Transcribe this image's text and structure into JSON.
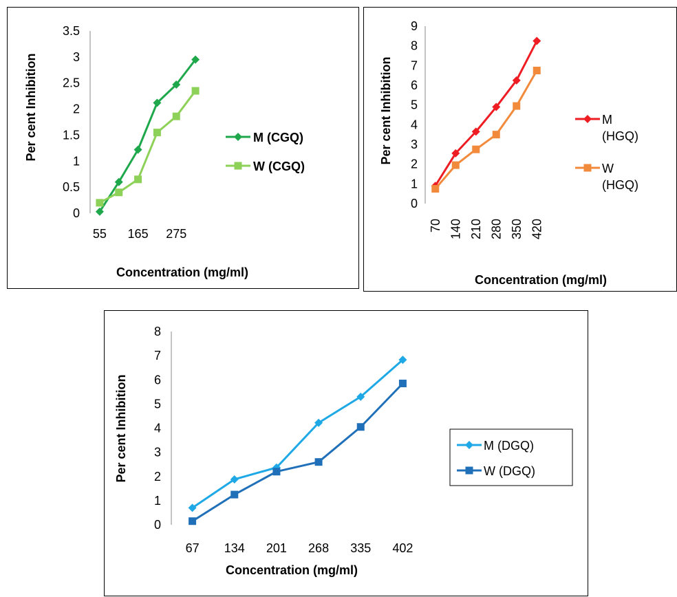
{
  "chart_data": [
    {
      "type": "line",
      "xlabel": "Concentration (mg/ml)",
      "ylabel": "Per cent Inhibition",
      "x": [
        55,
        110,
        165,
        220,
        275,
        330
      ],
      "x_tick_labels": [
        "55",
        "165",
        "275"
      ],
      "ylim": [
        0,
        3.5
      ],
      "y_ticks": [
        "0",
        "0.5",
        "1",
        "1.5",
        "2",
        "2.5",
        "3",
        "3.5"
      ],
      "legend_position": "right",
      "legend_bold": true,
      "series": [
        {
          "name": "M (CGQ)",
          "marker": "diamond",
          "color": "#1fa84b",
          "values": [
            0.03,
            0.6,
            1.22,
            2.12,
            2.47,
            2.95
          ]
        },
        {
          "name": "W (CGQ)",
          "marker": "square",
          "color": "#8ed159",
          "values": [
            0.2,
            0.4,
            0.65,
            1.55,
            1.86,
            2.35
          ]
        }
      ]
    },
    {
      "type": "line",
      "xlabel": "Concentration (mg/ml)",
      "ylabel": "Per cent Inhibition",
      "x": [
        70,
        140,
        210,
        280,
        350,
        420
      ],
      "x_tick_labels": [
        "70",
        "140",
        "210",
        "280",
        "350",
        "420"
      ],
      "x_tick_rotation": -90,
      "ylim": [
        0,
        9
      ],
      "y_ticks": [
        "0",
        "1",
        "2",
        "3",
        "4",
        "5",
        "6",
        "7",
        "8",
        "9"
      ],
      "legend_position": "right",
      "legend_bold": false,
      "series": [
        {
          "name": "M (HGQ)",
          "name_lines": [
            "M",
            "(HGQ)"
          ],
          "marker": "diamond",
          "color": "#ee1c23",
          "values": [
            0.9,
            2.55,
            3.65,
            4.9,
            6.25,
            8.25
          ]
        },
        {
          "name": "W (HGQ)",
          "name_lines": [
            "W",
            "(HGQ)"
          ],
          "marker": "square",
          "color": "#f28a3c",
          "values": [
            0.75,
            1.95,
            2.75,
            3.5,
            4.95,
            6.75
          ]
        }
      ]
    },
    {
      "type": "line",
      "xlabel": "Concentration (mg/ml)",
      "ylabel": "Per cent Inhibition",
      "x": [
        67,
        134,
        201,
        268,
        335,
        402
      ],
      "x_tick_labels": [
        "67",
        "134",
        "201",
        "268",
        "335",
        "402"
      ],
      "ylim": [
        0,
        8
      ],
      "y_ticks": [
        "0",
        "1",
        "2",
        "3",
        "4",
        "5",
        "6",
        "7",
        "8"
      ],
      "legend_position": "right",
      "legend_boxed": true,
      "legend_bold": false,
      "series": [
        {
          "name": "M (DGQ)",
          "marker": "diamond",
          "color": "#1ea9e6",
          "values": [
            0.7,
            1.88,
            2.37,
            4.22,
            5.3,
            6.83
          ]
        },
        {
          "name": "W (DGQ)",
          "marker": "square",
          "color": "#1f70b8",
          "values": [
            0.15,
            1.25,
            2.2,
            2.6,
            4.05,
            5.85
          ]
        }
      ]
    }
  ]
}
